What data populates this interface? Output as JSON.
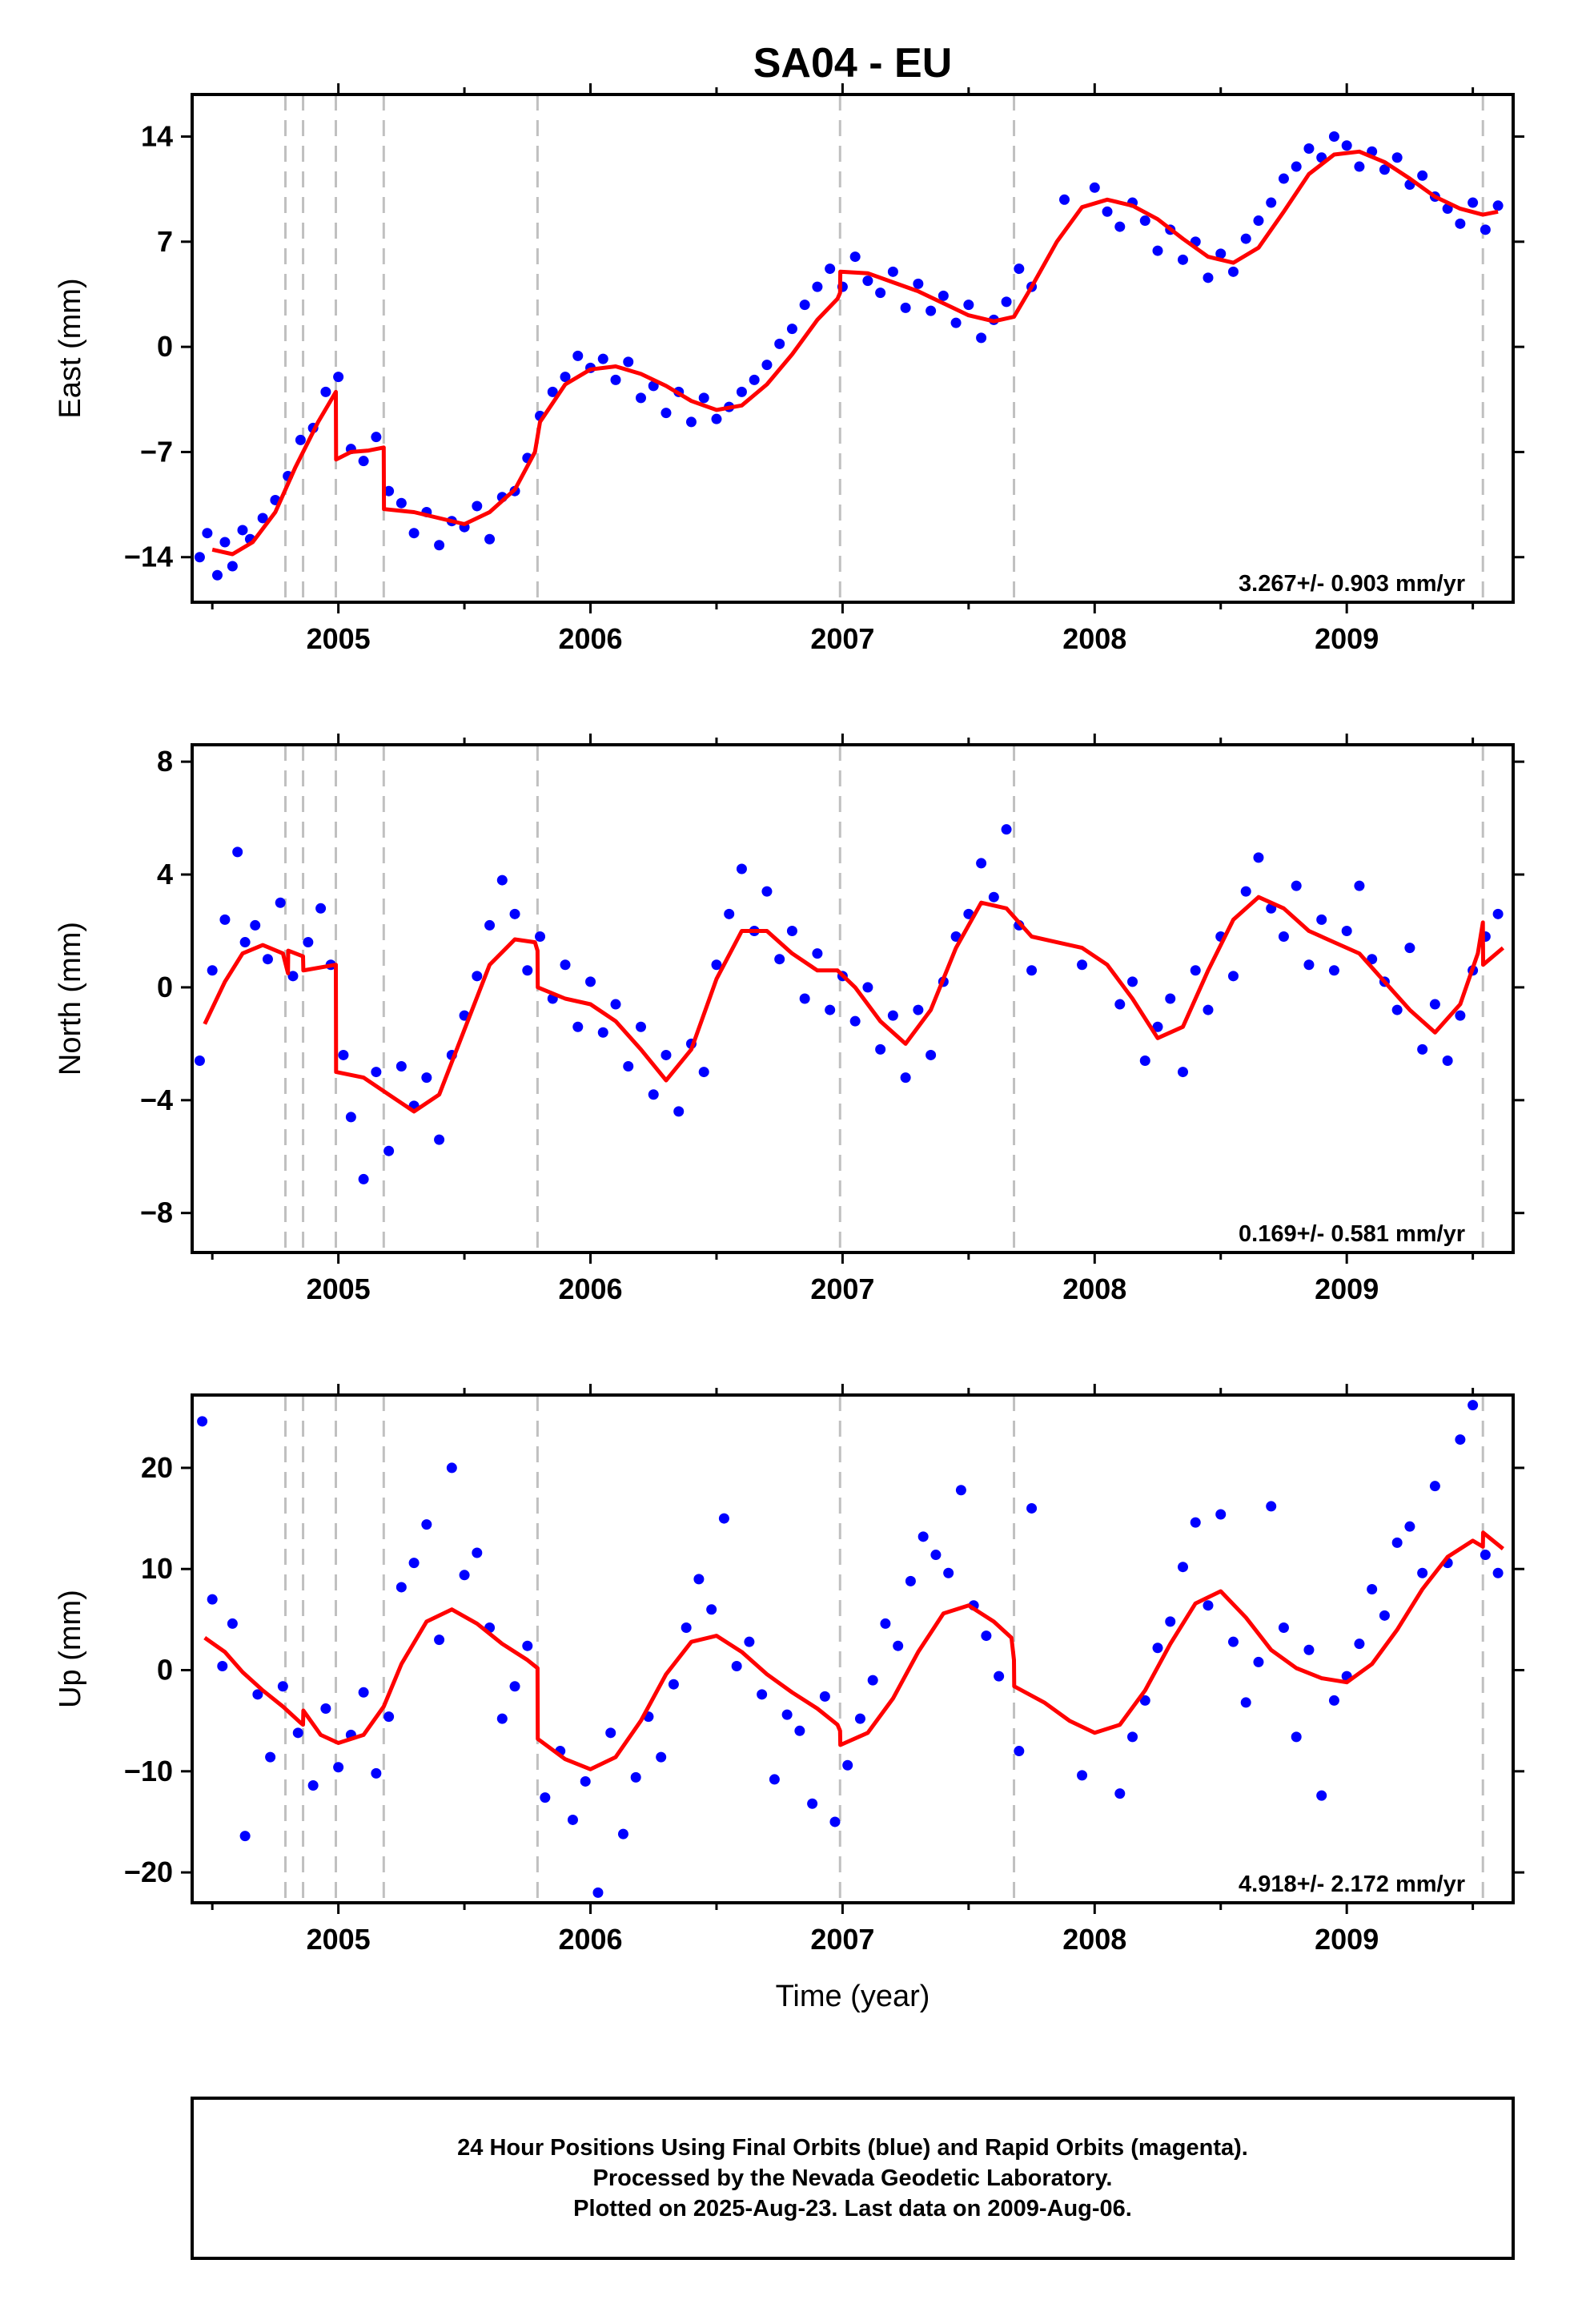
{
  "title": "SA04 - EU",
  "xlabel": "Time (year)",
  "colors": {
    "points": "#0000ff",
    "model": "#ff0000",
    "steps": "#c0c0c0",
    "frame": "#000000"
  },
  "chart_data": [
    {
      "type": "scatter",
      "panel": "East",
      "ylabel": "East (mm)",
      "xlim": [
        2004.42,
        2009.66
      ],
      "ylim": [
        -17.0,
        16.8
      ],
      "yticks": [
        -14,
        -7,
        0,
        7,
        14
      ],
      "xticks": [
        2005,
        2006,
        2007,
        2008,
        2009
      ],
      "annotation": "3.267+/- 0.903 mm/yr",
      "step_epochs": [
        2004.79,
        2004.86,
        2004.99,
        2005.18,
        2005.79,
        2006.99,
        2007.68,
        2009.54
      ],
      "model_x": [
        2004.5,
        2004.58,
        2004.66,
        2004.75,
        2004.83,
        2004.92,
        2004.99,
        2004.991,
        2005.05,
        2005.12,
        2005.18,
        2005.181,
        2005.3,
        2005.5,
        2005.6,
        2005.7,
        2005.78,
        2005.8,
        2005.9,
        2006.0,
        2006.1,
        2006.2,
        2006.3,
        2006.4,
        2006.5,
        2006.6,
        2006.7,
        2006.8,
        2006.9,
        2006.98,
        2006.99,
        2006.991,
        2007.1,
        2007.2,
        2007.3,
        2007.4,
        2007.5,
        2007.6,
        2007.68,
        2007.75,
        2007.85,
        2007.95,
        2008.05,
        2008.15,
        2008.25,
        2008.35,
        2008.45,
        2008.55,
        2008.65,
        2008.75,
        2008.85,
        2008.95,
        2009.05,
        2009.15,
        2009.25,
        2009.35,
        2009.45,
        2009.54,
        2009.6
      ],
      "model_y": [
        -13.5,
        -13.8,
        -13.0,
        -11.0,
        -8.0,
        -5.0,
        -3.0,
        -7.5,
        -7.0,
        -6.9,
        -6.7,
        -10.8,
        -11.0,
        -11.8,
        -11.0,
        -9.5,
        -7.0,
        -5.0,
        -2.5,
        -1.5,
        -1.3,
        -1.8,
        -2.6,
        -3.6,
        -4.2,
        -3.9,
        -2.5,
        -0.5,
        1.8,
        3.2,
        3.6,
        5.0,
        4.9,
        4.3,
        3.7,
        2.9,
        2.1,
        1.7,
        2.0,
        4.0,
        7.0,
        9.3,
        9.8,
        9.4,
        8.5,
        7.2,
        6.0,
        5.6,
        6.6,
        9.0,
        11.5,
        12.8,
        13.0,
        12.3,
        11.2,
        10.0,
        9.2,
        8.8,
        9.0
      ],
      "points_x": [
        2004.45,
        2004.48,
        2004.52,
        2004.55,
        2004.58,
        2004.62,
        2004.65,
        2004.7,
        2004.75,
        2004.8,
        2004.85,
        2004.9,
        2004.95,
        2005.0,
        2005.05,
        2005.1,
        2005.15,
        2005.2,
        2005.25,
        2005.3,
        2005.35,
        2005.4,
        2005.45,
        2005.5,
        2005.55,
        2005.6,
        2005.65,
        2005.7,
        2005.75,
        2005.8,
        2005.85,
        2005.9,
        2005.95,
        2006.0,
        2006.05,
        2006.1,
        2006.15,
        2006.2,
        2006.25,
        2006.3,
        2006.35,
        2006.4,
        2006.45,
        2006.5,
        2006.55,
        2006.6,
        2006.65,
        2006.7,
        2006.75,
        2006.8,
        2006.85,
        2006.9,
        2006.95,
        2007.0,
        2007.05,
        2007.1,
        2007.15,
        2007.2,
        2007.25,
        2007.3,
        2007.35,
        2007.4,
        2007.45,
        2007.5,
        2007.55,
        2007.6,
        2007.65,
        2007.7,
        2007.75,
        2007.88,
        2008.0,
        2008.05,
        2008.1,
        2008.15,
        2008.2,
        2008.25,
        2008.3,
        2008.35,
        2008.4,
        2008.45,
        2008.5,
        2008.55,
        2008.6,
        2008.65,
        2008.7,
        2008.75,
        2008.8,
        2008.85,
        2008.9,
        2008.95,
        2009.0,
        2009.05,
        2009.1,
        2009.15,
        2009.2,
        2009.25,
        2009.3,
        2009.35,
        2009.4,
        2009.45,
        2009.5,
        2009.55,
        2009.6
      ],
      "points_y": [
        -14.0,
        -12.4,
        -15.2,
        -13.0,
        -14.6,
        -12.2,
        -12.8,
        -11.4,
        -10.2,
        -8.6,
        -6.2,
        -5.4,
        -3.0,
        -2.0,
        -6.8,
        -7.6,
        -6.0,
        -9.6,
        -10.4,
        -12.4,
        -11.0,
        -13.2,
        -11.6,
        -12.0,
        -10.6,
        -12.8,
        -10.0,
        -9.6,
        -7.4,
        -4.6,
        -3.0,
        -2.0,
        -0.6,
        -1.4,
        -0.8,
        -2.2,
        -1.0,
        -3.4,
        -2.6,
        -4.4,
        -3.0,
        -5.0,
        -3.4,
        -4.8,
        -4.0,
        -3.0,
        -2.2,
        -1.2,
        0.2,
        1.2,
        2.8,
        4.0,
        5.2,
        4.0,
        6.0,
        4.4,
        3.6,
        5.0,
        2.6,
        4.2,
        2.4,
        3.4,
        1.6,
        2.8,
        0.6,
        1.8,
        3.0,
        5.2,
        4.0,
        9.8,
        10.6,
        9.0,
        8.0,
        9.6,
        8.4,
        6.4,
        7.8,
        5.8,
        7.0,
        4.6,
        6.2,
        5.0,
        7.2,
        8.4,
        9.6,
        11.2,
        12.0,
        13.2,
        12.6,
        14.0,
        13.4,
        12.0,
        13.0,
        11.8,
        12.6,
        10.8,
        11.4,
        10.0,
        9.2,
        8.2,
        9.6,
        7.8,
        9.4
      ]
    },
    {
      "type": "scatter",
      "panel": "North",
      "ylabel": "North (mm)",
      "xlim": [
        2004.42,
        2009.66
      ],
      "ylim": [
        -9.4,
        8.6
      ],
      "yticks": [
        -8,
        -4,
        0,
        4,
        8
      ],
      "xticks": [
        2005,
        2006,
        2007,
        2008,
        2009
      ],
      "annotation": "0.169+/- 0.581 mm/yr",
      "step_epochs": [
        2004.79,
        2004.86,
        2004.99,
        2005.18,
        2005.79,
        2006.99,
        2007.68,
        2009.54
      ],
      "model_x": [
        2004.47,
        2004.55,
        2004.62,
        2004.7,
        2004.78,
        2004.8,
        2004.801,
        2004.86,
        2004.861,
        2004.99,
        2004.991,
        2005.1,
        2005.2,
        2005.3,
        2005.4,
        2005.5,
        2005.6,
        2005.7,
        2005.78,
        2005.79,
        2005.791,
        2005.9,
        2006.0,
        2006.1,
        2006.2,
        2006.3,
        2006.4,
        2006.5,
        2006.6,
        2006.7,
        2006.8,
        2006.9,
        2006.98,
        2007.05,
        2007.15,
        2007.25,
        2007.35,
        2007.45,
        2007.55,
        2007.65,
        2007.75,
        2007.85,
        2007.95,
        2008.05,
        2008.15,
        2008.25,
        2008.35,
        2008.45,
        2008.55,
        2008.65,
        2008.75,
        2008.85,
        2008.95,
        2009.05,
        2009.15,
        2009.25,
        2009.35,
        2009.45,
        2009.52,
        2009.54,
        2009.541,
        2009.62
      ],
      "model_y": [
        -1.3,
        0.2,
        1.2,
        1.5,
        1.2,
        0.5,
        1.3,
        1.1,
        0.6,
        0.8,
        -3.0,
        -3.2,
        -3.8,
        -4.4,
        -3.8,
        -1.5,
        0.8,
        1.7,
        1.6,
        1.3,
        0.0,
        -0.4,
        -0.6,
        -1.2,
        -2.2,
        -3.3,
        -2.2,
        0.3,
        2.0,
        2.0,
        1.2,
        0.6,
        0.6,
        0.0,
        -1.2,
        -2.0,
        -0.8,
        1.4,
        3.0,
        2.8,
        1.8,
        1.6,
        1.4,
        0.8,
        -0.4,
        -1.8,
        -1.4,
        0.6,
        2.4,
        3.2,
        2.8,
        2.0,
        1.6,
        1.2,
        0.2,
        -0.8,
        -1.6,
        -0.6,
        1.2,
        2.3,
        0.8,
        1.4
      ],
      "points_x": [
        2004.45,
        2004.5,
        2004.55,
        2004.6,
        2004.63,
        2004.67,
        2004.72,
        2004.77,
        2004.82,
        2004.88,
        2004.93,
        2004.97,
        2005.02,
        2005.05,
        2005.1,
        2005.15,
        2005.2,
        2005.25,
        2005.3,
        2005.35,
        2005.4,
        2005.45,
        2005.5,
        2005.55,
        2005.6,
        2005.65,
        2005.7,
        2005.75,
        2005.8,
        2005.85,
        2005.9,
        2005.95,
        2006.0,
        2006.05,
        2006.1,
        2006.15,
        2006.2,
        2006.25,
        2006.3,
        2006.35,
        2006.4,
        2006.45,
        2006.5,
        2006.55,
        2006.6,
        2006.65,
        2006.7,
        2006.75,
        2006.8,
        2006.85,
        2006.9,
        2006.95,
        2007.0,
        2007.05,
        2007.1,
        2007.15,
        2007.2,
        2007.25,
        2007.3,
        2007.35,
        2007.4,
        2007.45,
        2007.5,
        2007.55,
        2007.6,
        2007.65,
        2007.7,
        2007.75,
        2007.95,
        2008.1,
        2008.15,
        2008.2,
        2008.25,
        2008.3,
        2008.35,
        2008.4,
        2008.45,
        2008.5,
        2008.55,
        2008.6,
        2008.65,
        2008.7,
        2008.75,
        2008.8,
        2008.85,
        2008.9,
        2008.95,
        2009.0,
        2009.05,
        2009.1,
        2009.15,
        2009.2,
        2009.25,
        2009.3,
        2009.35,
        2009.4,
        2009.45,
        2009.5,
        2009.55,
        2009.6
      ],
      "points_y": [
        -2.6,
        0.6,
        2.4,
        4.8,
        1.6,
        2.2,
        1.0,
        3.0,
        0.4,
        1.6,
        2.8,
        0.8,
        -2.4,
        -4.6,
        -6.8,
        -3.0,
        -5.8,
        -2.8,
        -4.2,
        -3.2,
        -5.4,
        -2.4,
        -1.0,
        0.4,
        2.2,
        3.8,
        2.6,
        0.6,
        1.8,
        -0.4,
        0.8,
        -1.4,
        0.2,
        -1.6,
        -0.6,
        -2.8,
        -1.4,
        -3.8,
        -2.4,
        -4.4,
        -2.0,
        -3.0,
        0.8,
        2.6,
        4.2,
        2.0,
        3.4,
        1.0,
        2.0,
        -0.4,
        1.2,
        -0.8,
        0.4,
        -1.2,
        0.0,
        -2.2,
        -1.0,
        -3.2,
        -0.8,
        -2.4,
        0.2,
        1.8,
        2.6,
        4.4,
        3.2,
        5.6,
        2.2,
        0.6,
        0.8,
        -0.6,
        0.2,
        -2.6,
        -1.4,
        -0.4,
        -3.0,
        0.6,
        -0.8,
        1.8,
        0.4,
        3.4,
        4.6,
        2.8,
        1.8,
        3.6,
        0.8,
        2.4,
        0.6,
        2.0,
        3.6,
        1.0,
        0.2,
        -0.8,
        1.4,
        -2.2,
        -0.6,
        -2.6,
        -1.0,
        0.6,
        1.8,
        2.6
      ]
    },
    {
      "type": "scatter",
      "panel": "Up",
      "ylabel": "Up (mm)",
      "xlim": [
        2004.42,
        2009.66
      ],
      "ylim": [
        -23.0,
        27.2
      ],
      "yticks": [
        -20,
        -10,
        0,
        10,
        20
      ],
      "xticks": [
        2005,
        2006,
        2007,
        2008,
        2009
      ],
      "annotation": "4.918+/- 2.172 mm/yr",
      "step_epochs": [
        2004.79,
        2004.86,
        2004.99,
        2005.18,
        2005.79,
        2006.99,
        2007.68,
        2009.54
      ],
      "model_x": [
        2004.47,
        2004.55,
        2004.62,
        2004.7,
        2004.78,
        2004.85,
        2004.86,
        2004.861,
        2004.93,
        2005.0,
        2005.1,
        2005.18,
        2005.25,
        2005.35,
        2005.45,
        2005.55,
        2005.65,
        2005.75,
        2005.79,
        2005.791,
        2005.9,
        2006.0,
        2006.1,
        2006.2,
        2006.3,
        2006.4,
        2006.5,
        2006.6,
        2006.7,
        2006.8,
        2006.9,
        2006.98,
        2006.99,
        2006.991,
        2007.1,
        2007.2,
        2007.3,
        2007.4,
        2007.5,
        2007.6,
        2007.67,
        2007.68,
        2007.681,
        2007.8,
        2007.9,
        2008.0,
        2008.1,
        2008.2,
        2008.3,
        2008.4,
        2008.5,
        2008.6,
        2008.7,
        2008.8,
        2008.9,
        2009.0,
        2009.1,
        2009.2,
        2009.3,
        2009.4,
        2009.5,
        2009.54,
        2009.541,
        2009.62
      ],
      "model_y": [
        3.2,
        1.8,
        -0.2,
        -2.0,
        -3.6,
        -5.2,
        -5.4,
        -4.0,
        -6.4,
        -7.2,
        -6.4,
        -3.6,
        0.6,
        4.8,
        6.0,
        4.6,
        2.6,
        1.0,
        0.2,
        -6.8,
        -8.8,
        -9.8,
        -8.6,
        -5.0,
        -0.4,
        2.8,
        3.4,
        1.8,
        -0.4,
        -2.2,
        -3.8,
        -5.4,
        -6.0,
        -7.4,
        -6.2,
        -2.8,
        1.8,
        5.6,
        6.4,
        4.8,
        3.2,
        1.0,
        -1.6,
        -3.2,
        -5.0,
        -6.2,
        -5.4,
        -2.0,
        2.6,
        6.6,
        7.8,
        5.2,
        2.0,
        0.2,
        -0.8,
        -1.2,
        0.6,
        4.0,
        8.0,
        11.2,
        12.8,
        12.2,
        13.6,
        12.0
      ],
      "points_x": [
        2004.46,
        2004.5,
        2004.54,
        2004.58,
        2004.63,
        2004.68,
        2004.73,
        2004.78,
        2004.84,
        2004.9,
        2004.95,
        2005.0,
        2005.05,
        2005.1,
        2005.15,
        2005.2,
        2005.25,
        2005.3,
        2005.35,
        2005.4,
        2005.45,
        2005.5,
        2005.55,
        2005.6,
        2005.65,
        2005.7,
        2005.75,
        2005.82,
        2005.88,
        2005.93,
        2005.98,
        2006.03,
        2006.08,
        2006.13,
        2006.18,
        2006.23,
        2006.28,
        2006.33,
        2006.38,
        2006.43,
        2006.48,
        2006.53,
        2006.58,
        2006.63,
        2006.68,
        2006.73,
        2006.78,
        2006.83,
        2006.88,
        2006.93,
        2006.97,
        2007.02,
        2007.07,
        2007.12,
        2007.17,
        2007.22,
        2007.27,
        2007.32,
        2007.37,
        2007.42,
        2007.47,
        2007.52,
        2007.57,
        2007.62,
        2007.7,
        2007.75,
        2007.95,
        2008.1,
        2008.15,
        2008.2,
        2008.25,
        2008.3,
        2008.35,
        2008.4,
        2008.45,
        2008.5,
        2008.55,
        2008.6,
        2008.65,
        2008.7,
        2008.75,
        2008.8,
        2008.85,
        2008.9,
        2008.95,
        2009.0,
        2009.05,
        2009.1,
        2009.15,
        2009.2,
        2009.25,
        2009.3,
        2009.35,
        2009.4,
        2009.45,
        2009.5,
        2009.55,
        2009.6
      ],
      "points_y": [
        24.6,
        7.0,
        0.4,
        4.6,
        -16.4,
        -2.4,
        -8.6,
        -1.6,
        -6.2,
        -11.4,
        -3.8,
        -9.6,
        -6.4,
        -2.2,
        -10.2,
        -4.6,
        8.2,
        10.6,
        14.4,
        3.0,
        20.0,
        9.4,
        11.6,
        4.2,
        -4.8,
        -1.6,
        2.4,
        -12.6,
        -8.0,
        -14.8,
        -11.0,
        -22.0,
        -6.2,
        -16.2,
        -10.6,
        -4.6,
        -8.6,
        -1.4,
        4.2,
        9.0,
        6.0,
        15.0,
        0.4,
        2.8,
        -2.4,
        -10.8,
        -4.4,
        -6.0,
        -13.2,
        -2.6,
        -15.0,
        -9.4,
        -4.8,
        -1.0,
        4.6,
        2.4,
        8.8,
        13.2,
        11.4,
        9.6,
        17.8,
        6.4,
        3.4,
        -0.6,
        -8.0,
        16.0,
        -10.4,
        -12.2,
        -6.6,
        -3.0,
        2.2,
        4.8,
        10.2,
        14.6,
        6.4,
        15.4,
        2.8,
        -3.2,
        0.8,
        16.2,
        4.2,
        -6.6,
        2.0,
        -12.4,
        -3.0,
        -0.6,
        2.6,
        8.0,
        5.4,
        12.6,
        14.2,
        9.6,
        18.2,
        10.6,
        22.8,
        26.2,
        11.4,
        9.6
      ]
    }
  ],
  "footer": {
    "line1": "24 Hour Positions Using Final Orbits (blue) and Rapid Orbits (magenta).",
    "line2": "Processed by the Nevada Geodetic Laboratory.",
    "line3": "Plotted on 2025-Aug-23. Last data on 2009-Aug-06."
  }
}
